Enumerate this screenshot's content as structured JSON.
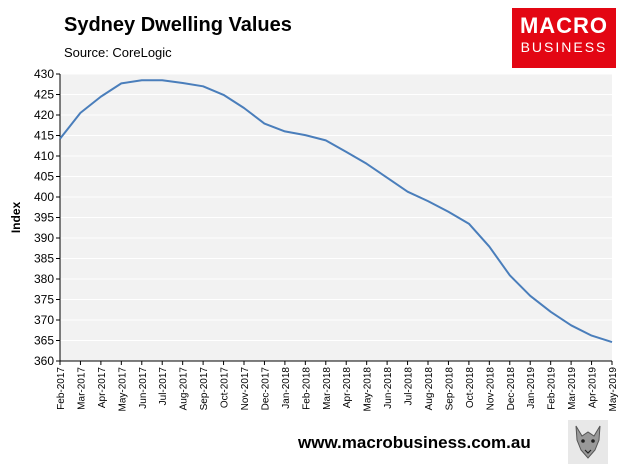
{
  "header": {
    "title": "Sydney Dwelling Values",
    "source": "Source: CoreLogic"
  },
  "logo": {
    "line1": "MACRO",
    "line2": "BUSINESS"
  },
  "footer": {
    "url": "www.macrobusiness.com.au"
  },
  "colors": {
    "line": "#4a7ebb",
    "plot_bg": "#f2f2f2",
    "grid": "#ffffff",
    "logo_bg": "#e30613"
  },
  "chart_data": {
    "type": "line",
    "title": "Sydney Dwelling Values",
    "subtitle": "Source: CoreLogic",
    "xlabel": "",
    "ylabel": "Index",
    "ylim": [
      360,
      430
    ],
    "yticks": [
      360,
      365,
      370,
      375,
      380,
      385,
      390,
      395,
      400,
      405,
      410,
      415,
      420,
      425,
      430
    ],
    "grid": true,
    "legend": "none",
    "categories": [
      "Feb-2017",
      "Mar-2017",
      "Apr-2017",
      "May-2017",
      "Jun-2017",
      "Jul-2017",
      "Aug-2017",
      "Sep-2017",
      "Oct-2017",
      "Nov-2017",
      "Dec-2017",
      "Jan-2018",
      "Feb-2018",
      "Mar-2018",
      "Apr-2018",
      "May-2018",
      "Jun-2018",
      "Jul-2018",
      "Aug-2018",
      "Sep-2018",
      "Oct-2018",
      "Nov-2018",
      "Dec-2018",
      "Jan-2019",
      "Feb-2019",
      "Mar-2019",
      "Apr-2019",
      "May-2019"
    ],
    "series": [
      {
        "values": [
          414.2,
          420.5,
          424.5,
          427.7,
          428.5,
          428.5,
          427.8,
          427.0,
          424.9,
          421.7,
          417.9,
          416.0,
          415.1,
          413.8,
          411.0,
          408.1,
          404.7,
          401.3,
          399.0,
          396.4,
          393.5,
          387.9,
          380.9,
          375.9,
          372.0,
          368.7,
          366.2,
          364.6
        ]
      }
    ]
  }
}
